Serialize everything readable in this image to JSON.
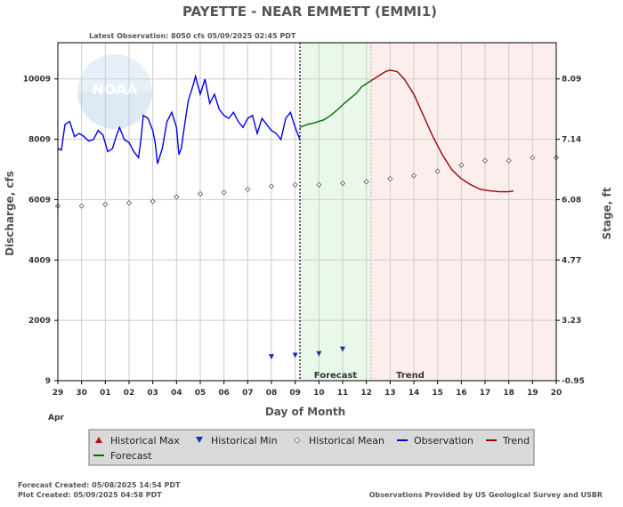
{
  "chart_data": {
    "type": "line",
    "title": "PAYETTE - NEAR EMMETT  (EMMI1)",
    "subtitle": "Latest Observation: 8050 cfs 05/09/2025 02:45 PDT",
    "xlabel": "Day of Month",
    "ylabel_left": "Discharge, cfs",
    "ylabel_right": "Stage, ft",
    "x_month_label": "Apr",
    "x_ticks": [
      "29",
      "30",
      "01",
      "02",
      "03",
      "04",
      "05",
      "06",
      "07",
      "08",
      "09",
      "10",
      "11",
      "12",
      "13",
      "14",
      "15",
      "16",
      "17",
      "18",
      "19",
      "20"
    ],
    "x_range": [
      0,
      21
    ],
    "y_left_ticks": [
      "9",
      "2009",
      "4009",
      "6009",
      "8009",
      "10009"
    ],
    "y_left_values": [
      9,
      2009,
      4009,
      6009,
      8009,
      10009
    ],
    "y_left_range": [
      9,
      11209
    ],
    "y_right_ticks": [
      "-0.95",
      "3.23",
      "4.77",
      "6.08",
      "7.14",
      "8.09"
    ],
    "y_right_values": [
      9,
      2009,
      4009,
      6009,
      8009,
      10009
    ],
    "grid": true,
    "regions": [
      {
        "label": "Forecast",
        "from": 10.2,
        "to": 13.2,
        "color": "#e9f8e9"
      },
      {
        "label": "Trend",
        "from": 13.2,
        "to": 21,
        "color": "#fdeeee"
      }
    ],
    "latest_obs_x": 10.2,
    "series": [
      {
        "name": "Observation",
        "color": "#0000ee",
        "x": [
          0,
          0.15,
          0.3,
          0.5,
          0.7,
          0.9,
          1.1,
          1.3,
          1.5,
          1.7,
          1.9,
          2.1,
          2.3,
          2.5,
          2.6,
          2.8,
          3.0,
          3.2,
          3.4,
          3.5,
          3.6,
          3.8,
          4.0,
          4.1,
          4.2,
          4.4,
          4.6,
          4.8,
          5.0,
          5.1,
          5.2,
          5.4,
          5.5,
          5.7,
          5.8,
          6.0,
          6.2,
          6.4,
          6.6,
          6.8,
          7.0,
          7.2,
          7.4,
          7.6,
          7.8,
          8.0,
          8.2,
          8.4,
          8.6,
          8.8,
          9.0,
          9.2,
          9.4,
          9.6,
          9.8,
          10.0,
          10.2
        ],
        "y": [
          7700,
          7650,
          8500,
          8600,
          8100,
          8200,
          8100,
          7950,
          8000,
          8300,
          8150,
          7600,
          7700,
          8200,
          8400,
          8000,
          7900,
          7600,
          7400,
          8000,
          8800,
          8700,
          8300,
          7900,
          7200,
          7700,
          8600,
          8900,
          8400,
          7500,
          7700,
          8800,
          9300,
          9800,
          10100,
          9500,
          10000,
          9200,
          9500,
          9000,
          8800,
          8700,
          8900,
          8600,
          8400,
          8700,
          8800,
          8200,
          8700,
          8500,
          8300,
          8200,
          8000,
          8700,
          8900,
          8400,
          8000
        ]
      },
      {
        "name": "Forecast",
        "color": "#007000",
        "x": [
          10.2,
          10.5,
          10.8,
          11.2,
          11.5,
          11.8,
          12.0,
          12.3,
          12.6,
          12.8,
          13.0,
          13.2
        ],
        "y": [
          8400,
          8500,
          8550,
          8650,
          8800,
          9000,
          9150,
          9350,
          9550,
          9750,
          9850,
          9950
        ]
      },
      {
        "name": "Trend",
        "color": "#a00000",
        "x": [
          13.2,
          13.5,
          13.8,
          14.0,
          14.3,
          14.6,
          15.0,
          15.4,
          15.8,
          16.2,
          16.6,
          17.0,
          17.4,
          17.8,
          18.2,
          18.6,
          19.0,
          19.2
        ],
        "y": [
          9950,
          10100,
          10250,
          10300,
          10250,
          10000,
          9500,
          8800,
          8100,
          7500,
          7000,
          6700,
          6500,
          6350,
          6300,
          6270,
          6270,
          6300
        ]
      },
      {
        "name": "Historical Mean",
        "color": "#555555",
        "marker": "diamond",
        "x": [
          0,
          1,
          2,
          3,
          4,
          5,
          6,
          7,
          8,
          9,
          10,
          11,
          12,
          13,
          14,
          15,
          16,
          17,
          18,
          19,
          20,
          21
        ],
        "y": [
          5800,
          5800,
          5850,
          5900,
          5950,
          6100,
          6200,
          6250,
          6350,
          6450,
          6500,
          6500,
          6550,
          6600,
          6700,
          6800,
          6950,
          7150,
          7300,
          7300,
          7400,
          7400
        ]
      },
      {
        "name": "Historical Min",
        "color": "#1a2fb0",
        "marker": "triangle-down",
        "x": [
          9,
          10,
          11,
          12
        ],
        "y": [
          800,
          850,
          900,
          1050
        ]
      }
    ],
    "legend": [
      "Historical Max",
      "Historical Min",
      "Historical Mean",
      "Observation",
      "Trend",
      "Forecast"
    ],
    "legend_colors": {
      "Historical Max": "#c01010",
      "Historical Min": "#1a2fb0",
      "Historical Mean": "#888888",
      "Observation": "#0000ee",
      "Trend": "#a00000",
      "Forecast": "#007000"
    },
    "legend_placement": "bottom"
  },
  "footer": {
    "forecast_created": "Forecast Created: 05/08/2025 14:54 PDT",
    "plot_created": "Plot Created: 05/09/2025 04:58 PDT",
    "source": "Observations Provided by US Geological Survey and USBR"
  },
  "watermark": {
    "text": "NOAA"
  }
}
